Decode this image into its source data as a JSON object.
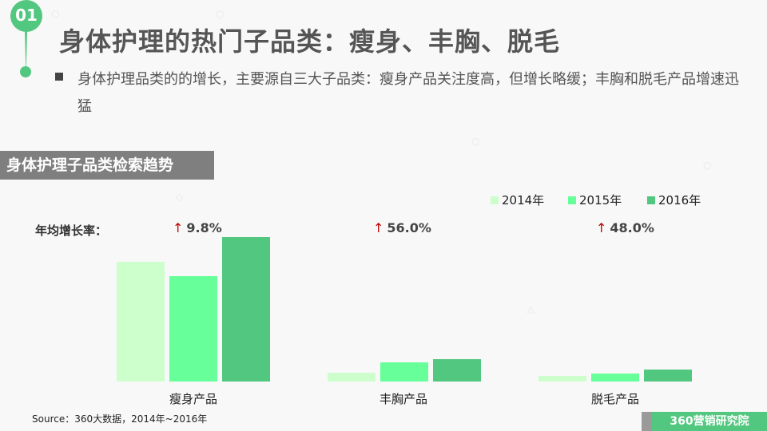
{
  "header": {
    "section_number": "01",
    "title": "身体护理的热门子品类：瘦身、丰胸、脱毛",
    "description": "身体护理品类的的增长，主要源自三大子品类：瘦身产品关注度高，但增长略缓；丰胸和脱毛产品增速迅猛"
  },
  "section_label": "身体护理子品类检索趋势",
  "growth": {
    "label": "年均增长率：",
    "arrow": "↑",
    "values": [
      "9.8%",
      "56.0%",
      "48.0%"
    ]
  },
  "legend": [
    {
      "label": "2014年",
      "color": "#ccffcc"
    },
    {
      "label": "2015年",
      "color": "#66ff99"
    },
    {
      "label": "2016年",
      "color": "#52c77f"
    }
  ],
  "categories": [
    "瘦身产品",
    "丰胸产品",
    "脱毛产品"
  ],
  "source": "Source：360大数据，2014年~2016年",
  "brand": "360营销研究院",
  "chart_data": {
    "type": "bar",
    "title": "身体护理子品类检索趋势",
    "categories": [
      "瘦身产品",
      "丰胸产品",
      "脱毛产品"
    ],
    "series": [
      {
        "name": "2014年",
        "color": "#ccffcc",
        "values": [
          150,
          11,
          7
        ]
      },
      {
        "name": "2015年",
        "color": "#66ff99",
        "values": [
          132,
          24,
          10
        ]
      },
      {
        "name": "2016年",
        "color": "#52c77f",
        "values": [
          181,
          28,
          15
        ]
      }
    ],
    "annotations": {
      "年均增长率": [
        "9.8%",
        "56.0%",
        "48.0%"
      ]
    },
    "xlabel": "",
    "ylabel": "",
    "ylim": [
      0,
      200
    ],
    "grid": false,
    "legend_position": "top-right",
    "value_units": "relative (pixel-estimated, no axis shown)"
  }
}
